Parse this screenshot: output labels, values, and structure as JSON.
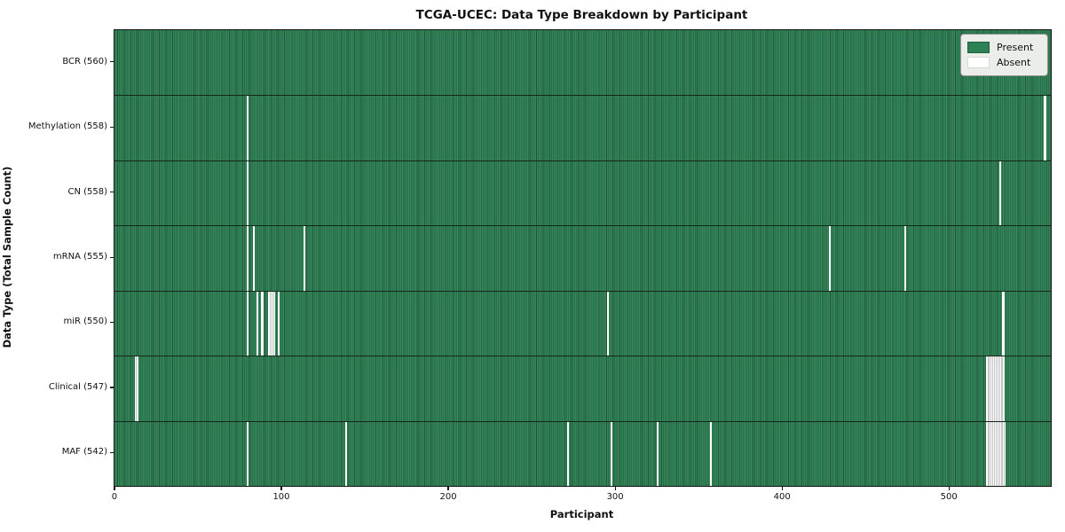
{
  "title": "TCGA-UCEC: Data Type Breakdown by Participant",
  "xlabel": "Participant",
  "ylabel": "Data Type (Total Sample Count)",
  "legend": {
    "present_label": "Present",
    "absent_label": "Absent"
  },
  "colors": {
    "present": "#2e8154",
    "present_stripe_light": "#3c8d63",
    "present_stripe_dark": "#1e5636",
    "absent": "#ffffff",
    "row_separator": "#13271b"
  },
  "chart_data": {
    "type": "heatmap",
    "title": "TCGA-UCEC: Data Type Breakdown by Participant",
    "xlabel": "Participant",
    "ylabel": "Data Type (Total Sample Count)",
    "n_participants": 560,
    "x_range": [
      -0.5,
      560.5
    ],
    "x_ticks": [
      0,
      100,
      200,
      300,
      400,
      500
    ],
    "legend_entries": [
      "Present",
      "Absent"
    ],
    "legend_position": "upper right",
    "grid": false,
    "rows": [
      {
        "name": "BCR",
        "label": "BCR (560)",
        "present_count": 560,
        "absent_participants": []
      },
      {
        "name": "Methylation",
        "label": "Methylation (558)",
        "present_count": 558,
        "absent_participants": [
          79,
          557
        ]
      },
      {
        "name": "CN",
        "label": "CN (558)",
        "present_count": 558,
        "absent_participants": [
          79,
          530
        ]
      },
      {
        "name": "mRNA",
        "label": "mRNA (555)",
        "present_count": 555,
        "absent_participants": [
          79,
          83,
          113,
          428,
          473
        ]
      },
      {
        "name": "miR",
        "label": "miR (550)",
        "present_count": 550,
        "absent_participants": [
          79,
          85,
          88,
          92,
          93,
          94,
          95,
          98,
          295,
          532
        ]
      },
      {
        "name": "Clinical",
        "label": "Clinical (547)",
        "present_count": 547,
        "absent_participants": [
          12,
          13,
          522,
          523,
          524,
          525,
          526,
          527,
          528,
          529,
          530,
          531,
          532
        ]
      },
      {
        "name": "MAF",
        "label": "MAF (542)",
        "present_count": 542,
        "absent_participants": [
          79,
          138,
          271,
          297,
          325,
          357,
          522,
          523,
          524,
          525,
          526,
          527,
          528,
          529,
          530,
          531,
          532,
          533
        ]
      }
    ]
  }
}
